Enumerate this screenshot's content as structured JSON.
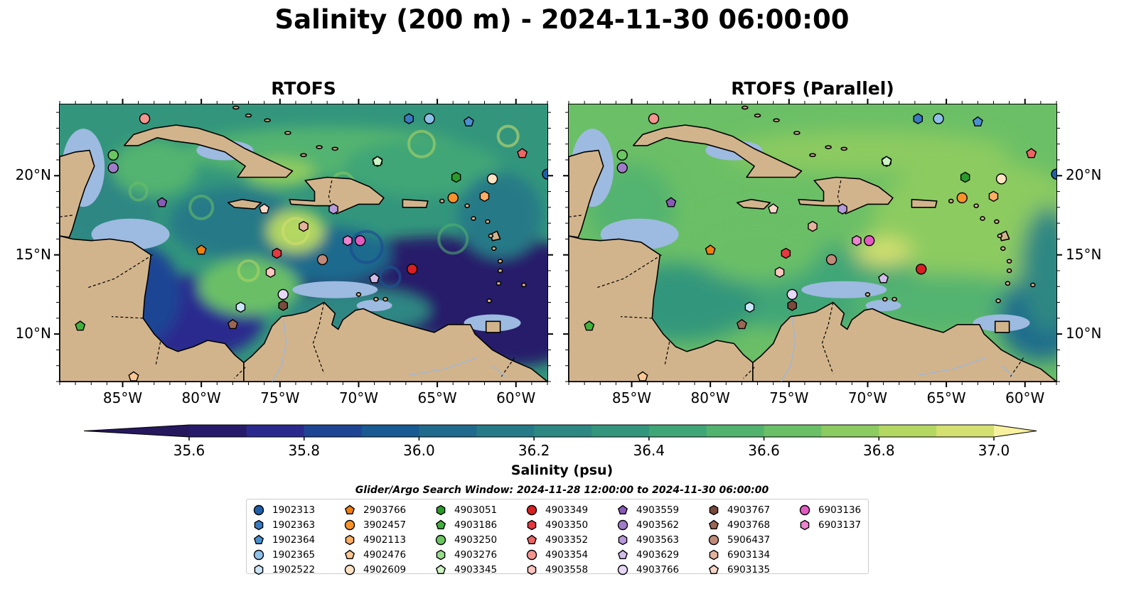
{
  "title": "Salinity (200 m) - 2024-11-30 06:00:00",
  "panels": [
    {
      "title": "RTOFS",
      "variant": "high"
    },
    {
      "title": "RTOFS (Parallel)",
      "variant": "parallel"
    }
  ],
  "map": {
    "lon_range": [
      -89,
      -58
    ],
    "lat_range": [
      7,
      24.5
    ],
    "lon_ticks": [
      "85°W",
      "80°W",
      "75°W",
      "70°W",
      "65°W",
      "60°W"
    ],
    "lon_tick_values": [
      -85,
      -80,
      -75,
      -70,
      -65,
      -60
    ],
    "lat_ticks": [
      "20°N",
      "15°N",
      "10°N"
    ],
    "lat_tick_values": [
      20,
      15,
      10
    ],
    "land_color": "#d2b48c",
    "shallow_color": "#9dbae0"
  },
  "colorbar": {
    "label": "Salinity (psu)",
    "tick_labels": [
      "35.6",
      "35.8",
      "36.0",
      "36.2",
      "36.4",
      "36.6",
      "36.8",
      "37.0"
    ],
    "tick_values": [
      35.6,
      35.8,
      36.0,
      36.2,
      36.4,
      36.6,
      36.8,
      37.0
    ],
    "levels": [
      35.6,
      35.7,
      35.8,
      35.9,
      36.0,
      36.1,
      36.2,
      36.3,
      36.4,
      36.5,
      36.6,
      36.7,
      36.8,
      36.9,
      37.0
    ],
    "colors": [
      "#281a6a",
      "#2a2a8e",
      "#1d4594",
      "#185a91",
      "#1f6a8d",
      "#267a87",
      "#2d8783",
      "#33967c",
      "#3fa677",
      "#52b36f",
      "#6bbf66",
      "#8ccb61",
      "#b4d762",
      "#d4e06f"
    ],
    "under_color": "#26185e",
    "over_color": "#f8f1a0"
  },
  "search_window": "Glider/Argo Search Window: 2024-11-28 12:00:00 to 2024-11-30 06:00:00",
  "legend": [
    {
      "id": "1902313",
      "marker": "circle",
      "color": "#1f5fa8"
    },
    {
      "id": "1902363",
      "marker": "hexagon",
      "color": "#3a7ac0"
    },
    {
      "id": "1902364",
      "marker": "pentagon",
      "color": "#4a90d0"
    },
    {
      "id": "1902365",
      "marker": "circle",
      "color": "#8ec1ea"
    },
    {
      "id": "1902522",
      "marker": "hexagon",
      "color": "#cbe6fb"
    },
    {
      "id": "2903766",
      "marker": "pentagon",
      "color": "#f07f0e"
    },
    {
      "id": "3902457",
      "marker": "circle",
      "color": "#f7932a"
    },
    {
      "id": "4902113",
      "marker": "hexagon",
      "color": "#fbae64"
    },
    {
      "id": "4902476",
      "marker": "pentagon",
      "color": "#fdc793"
    },
    {
      "id": "4902609",
      "marker": "circle",
      "color": "#fee3c3"
    },
    {
      "id": "4903051",
      "marker": "hexagon",
      "color": "#2a9a2a"
    },
    {
      "id": "4903186",
      "marker": "pentagon",
      "color": "#44b03c"
    },
    {
      "id": "4903250",
      "marker": "circle",
      "color": "#6bc562"
    },
    {
      "id": "4903276",
      "marker": "hexagon",
      "color": "#98dc8d"
    },
    {
      "id": "4903345",
      "marker": "pentagon",
      "color": "#ccf3c2"
    },
    {
      "id": "4903349",
      "marker": "circle",
      "color": "#d62022"
    },
    {
      "id": "4903350",
      "marker": "hexagon",
      "color": "#e23a40"
    },
    {
      "id": "4903352",
      "marker": "pentagon",
      "color": "#ee6565"
    },
    {
      "id": "4903354",
      "marker": "circle",
      "color": "#f49590"
    },
    {
      "id": "4903558",
      "marker": "hexagon",
      "color": "#fbc5c0"
    },
    {
      "id": "4903559",
      "marker": "pentagon",
      "color": "#8a5ab8"
    },
    {
      "id": "4903562",
      "marker": "circle",
      "color": "#a07cc8"
    },
    {
      "id": "4903563",
      "marker": "hexagon",
      "color": "#b89ada"
    },
    {
      "id": "4903629",
      "marker": "pentagon",
      "color": "#d2bcea"
    },
    {
      "id": "4903766",
      "marker": "circle",
      "color": "#e7d8f8"
    },
    {
      "id": "4903767",
      "marker": "hexagon",
      "color": "#7a4a3c"
    },
    {
      "id": "4903768",
      "marker": "pentagon",
      "color": "#9c6654"
    },
    {
      "id": "5906437",
      "marker": "circle",
      "color": "#c08a78"
    },
    {
      "id": "6903134",
      "marker": "hexagon",
      "color": "#e4b39e"
    },
    {
      "id": "6903135",
      "marker": "pentagon",
      "color": "#f6d7c8"
    },
    {
      "id": "6903136",
      "marker": "circle",
      "color": "#e35ac0"
    },
    {
      "id": "6903137",
      "marker": "hexagon",
      "color": "#ec84cf"
    }
  ],
  "observations": [
    {
      "id": "1902313",
      "lon": -58.0,
      "lat": 20.1
    },
    {
      "id": "1902363",
      "lon": -66.8,
      "lat": 23.6
    },
    {
      "id": "1902364",
      "lon": -63.0,
      "lat": 23.4
    },
    {
      "id": "1902365",
      "lon": -65.5,
      "lat": 23.6
    },
    {
      "id": "1902522",
      "lon": -77.5,
      "lat": 11.7
    },
    {
      "id": "2903766",
      "lon": -80.0,
      "lat": 15.3
    },
    {
      "id": "3902457",
      "lon": -64.0,
      "lat": 18.6
    },
    {
      "id": "4902113",
      "lon": -62.0,
      "lat": 18.7
    },
    {
      "id": "4902476",
      "lon": -84.3,
      "lat": 7.3
    },
    {
      "id": "4902609",
      "lon": -61.5,
      "lat": 19.8
    },
    {
      "id": "4903051",
      "lon": -63.8,
      "lat": 19.9
    },
    {
      "id": "4903186",
      "lon": -87.7,
      "lat": 10.5
    },
    {
      "id": "4903250",
      "lon": -85.6,
      "lat": 21.3
    },
    {
      "id": "4903276",
      "lon": -68.8,
      "lat": 20.9
    },
    {
      "id": "4903345",
      "lon": -68.8,
      "lat": 20.9
    },
    {
      "id": "4903349",
      "lon": -66.6,
      "lat": 14.1
    },
    {
      "id": "4903350",
      "lon": -75.2,
      "lat": 15.1
    },
    {
      "id": "4903352",
      "lon": -59.6,
      "lat": 21.4
    },
    {
      "id": "4903354",
      "lon": -83.6,
      "lat": 23.6
    },
    {
      "id": "4903558",
      "lon": -75.6,
      "lat": 13.9
    },
    {
      "id": "4903559",
      "lon": -82.5,
      "lat": 18.3
    },
    {
      "id": "4903562",
      "lon": -85.6,
      "lat": 20.5
    },
    {
      "id": "4903563",
      "lon": -71.6,
      "lat": 17.9
    },
    {
      "id": "4903629",
      "lon": -69.0,
      "lat": 13.5
    },
    {
      "id": "4903766",
      "lon": -74.8,
      "lat": 12.5
    },
    {
      "id": "4903767",
      "lon": -74.8,
      "lat": 11.8
    },
    {
      "id": "4903768",
      "lon": -78.0,
      "lat": 10.6
    },
    {
      "id": "5906437",
      "lon": -72.3,
      "lat": 14.7
    },
    {
      "id": "6903134",
      "lon": -73.5,
      "lat": 16.8
    },
    {
      "id": "6903135",
      "lon": -76.0,
      "lat": 17.9
    },
    {
      "id": "6903136",
      "lon": -69.9,
      "lat": 15.9
    },
    {
      "id": "6903137",
      "lon": -70.7,
      "lat": 15.9
    }
  ]
}
